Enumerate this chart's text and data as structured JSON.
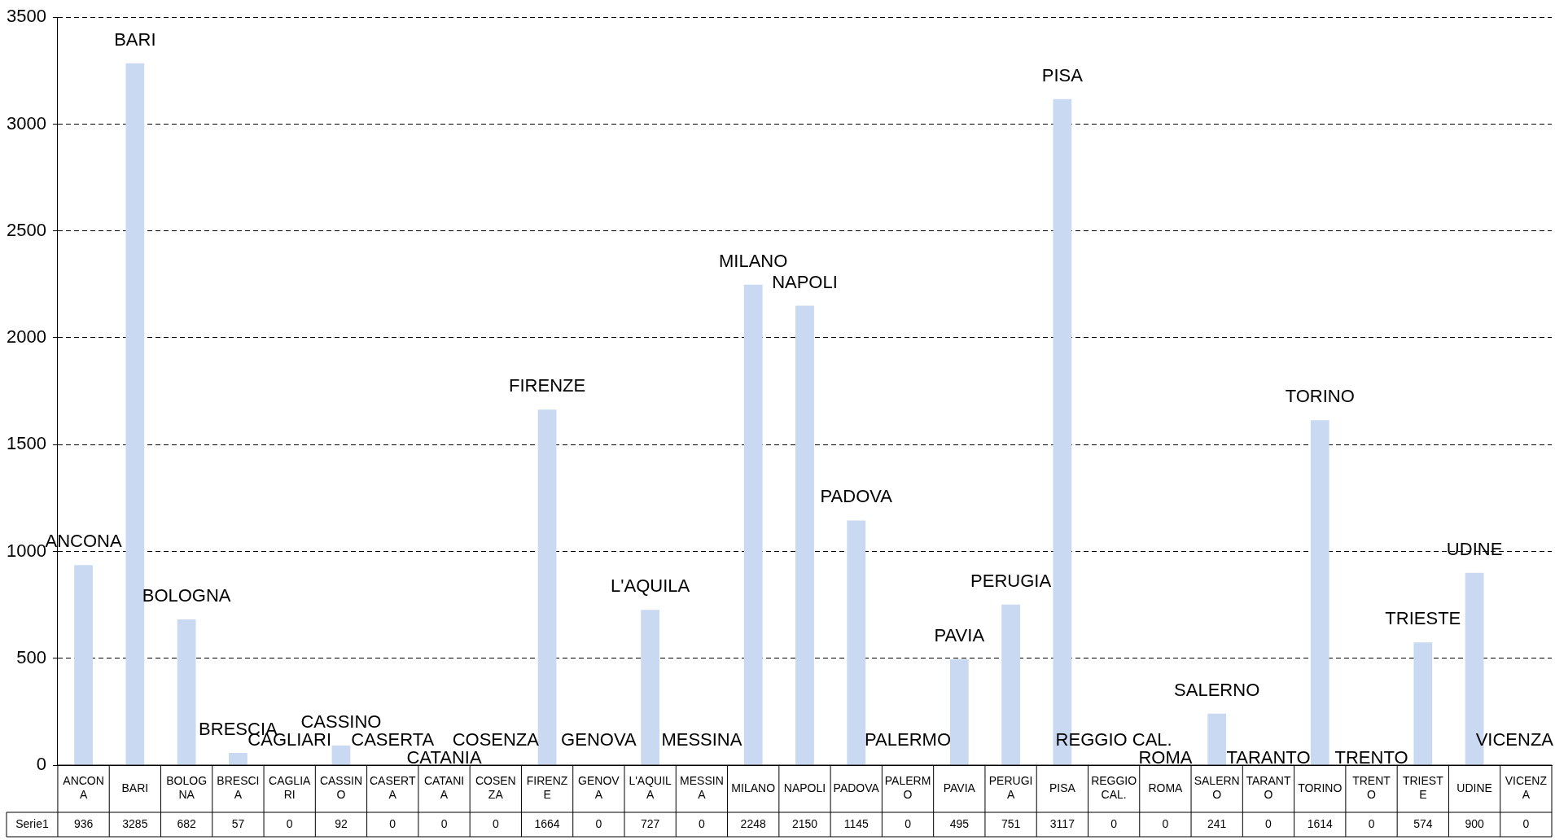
{
  "chart_data": {
    "type": "bar",
    "categories": [
      "ANCONA",
      "BARI",
      "BOLOGNA",
      "BRESCIA",
      "CAGLIARI",
      "CASSINO",
      "CASERTA",
      "CATANIA",
      "COSENZA",
      "FIRENZE",
      "GENOVA",
      "L'AQUILA",
      "MESSINA",
      "MILANO",
      "NAPOLI",
      "PADOVA",
      "PALERMO",
      "PAVIA",
      "PERUGIA",
      "PISA",
      "REGGIO CAL.",
      "ROMA",
      "SALERNO",
      "TARANTO",
      "TORINO",
      "TRENTO",
      "TRIESTE",
      "UDINE",
      "VICENZA"
    ],
    "series": [
      {
        "name": "Serie1",
        "color": "#c9d9f2",
        "values": [
          936,
          3285,
          682,
          57,
          0,
          92,
          0,
          0,
          0,
          1664,
          0,
          727,
          0,
          2248,
          2150,
          1145,
          0,
          495,
          751,
          3117,
          0,
          0,
          241,
          0,
          1614,
          0,
          574,
          900,
          0
        ]
      }
    ],
    "data_labels": true,
    "ylim": [
      0,
      3500
    ],
    "yticks": [
      0,
      500,
      1000,
      1500,
      2000,
      2500,
      3000,
      3500
    ],
    "grid": "y",
    "legend": false,
    "annotations": [
      "ANCONA",
      "BARI",
      "BOLOGNA",
      "BRESCIA",
      "CAGLIARI",
      "CASSINO",
      "CASERTA",
      "CATANIA",
      "COSENZA",
      "FIRENZE",
      "GENOVA",
      "L'AQUILA",
      "MESSINA",
      "MILANO",
      "NAPOLI",
      "PADOVA",
      "PALERMO",
      "PAVIA",
      "PERUGIA",
      "PISA",
      "REGGIO CAL.",
      "ROMA",
      "SALERNO",
      "TARANTO",
      "TORINO",
      "TRENTO",
      "TRIESTE",
      "UDINE",
      "VICENZA"
    ]
  }
}
